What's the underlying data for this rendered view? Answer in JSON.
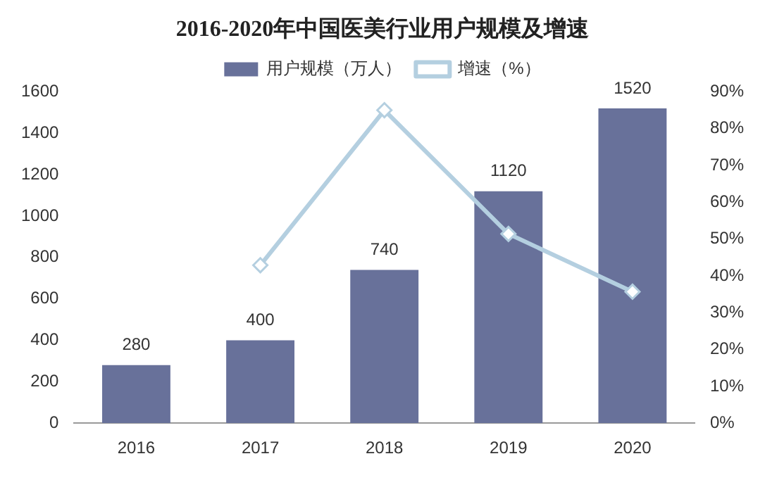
{
  "chart_data": {
    "type": "bar",
    "title": "2016-2020年中国医美行业用户规模及增速",
    "categories": [
      "2016",
      "2017",
      "2018",
      "2019",
      "2020"
    ],
    "series": [
      {
        "name": "用户规模（万人）",
        "color": "#68719a",
        "values": [
          280,
          400,
          740,
          1120,
          1520
        ],
        "value_labels": [
          "280",
          "400",
          "740",
          "1120",
          "1520"
        ]
      },
      {
        "name": "增速（%）",
        "type": "line",
        "axis": "y2",
        "color": "#b4cfe0",
        "values": [
          null,
          42.9,
          85,
          51.4,
          35.7
        ]
      }
    ],
    "ylim": [
      0,
      1600
    ],
    "yticks": [
      0,
      200,
      400,
      600,
      800,
      1000,
      1200,
      1400,
      1600
    ],
    "y2lim": [
      0,
      90
    ],
    "y2ticks": [
      {
        "value": 0,
        "label": "0%"
      },
      {
        "value": 10,
        "label": "10%"
      },
      {
        "value": 20,
        "label": "20%"
      },
      {
        "value": 30,
        "label": "30%"
      },
      {
        "value": 40,
        "label": "40%"
      },
      {
        "value": 50,
        "label": "50%"
      },
      {
        "value": 60,
        "label": "60%"
      },
      {
        "value": 70,
        "label": "70%"
      },
      {
        "value": 80,
        "label": "80%"
      },
      {
        "value": 90,
        "label": "90%"
      }
    ],
    "legend": "top",
    "grid": false,
    "marker": "diamond",
    "line_style": "solid"
  }
}
